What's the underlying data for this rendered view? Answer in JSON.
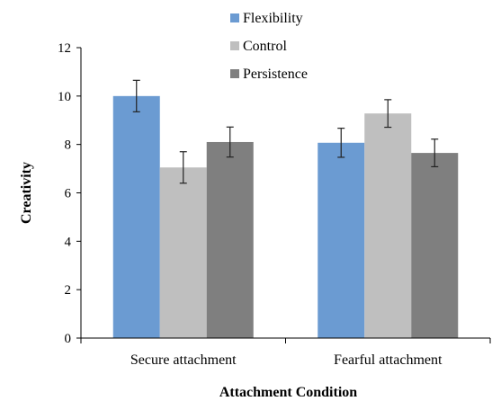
{
  "chart_data": {
    "type": "bar",
    "title": "",
    "xlabel": "Attachment Condition",
    "ylabel": "Creativity",
    "ylim": [
      0,
      12
    ],
    "yticks": [
      0,
      2,
      4,
      6,
      8,
      10,
      12
    ],
    "grid": false,
    "legend_position": "top-center",
    "categories": [
      "Secure attachment",
      "Fearful attachment"
    ],
    "series": [
      {
        "name": "Flexibility",
        "color": "#6b9bd2",
        "values": [
          10.0,
          8.07
        ],
        "error": [
          0.65,
          0.6
        ]
      },
      {
        "name": "Control",
        "color": "#bfbfbf",
        "values": [
          7.05,
          9.28
        ],
        "error": [
          0.65,
          0.57
        ]
      },
      {
        "name": "Persistence",
        "color": "#7f7f7f",
        "values": [
          8.1,
          7.65
        ],
        "error": [
          0.62,
          0.57
        ]
      }
    ]
  }
}
